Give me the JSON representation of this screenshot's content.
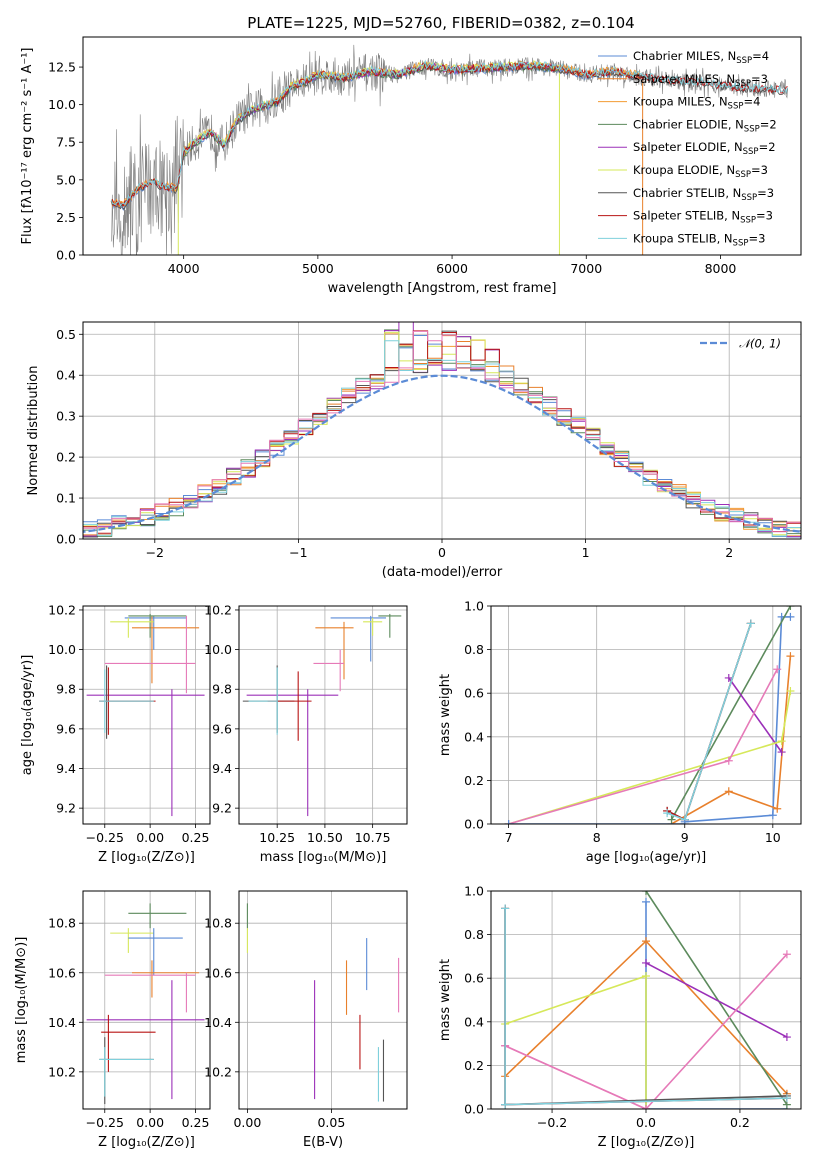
{
  "figure": {
    "title": "PLATE=1225, MJD=52760, FIBERID=0382, z=0.104"
  },
  "colors": {
    "Chabrier MILES": "#5b8bd6",
    "Salpeter MILES": "#e8802c",
    "Kroupa MILES": "#f29b33",
    "Chabrier ELODIE": "#5c8a5c",
    "Salpeter ELODIE": "#9b30b8",
    "Kroupa ELODIE": "#d6e85a",
    "Chabrier STELIB": "#555555",
    "Salpeter STELIB": "#b81414",
    "Kroupa STELIB": "#7fd0dc",
    "pink": "#e67ab8",
    "data": "#808080"
  },
  "legend": [
    {
      "name": "Chabrier MILES",
      "nssp": "4"
    },
    {
      "name": "Salpeter MILES",
      "nssp": "3"
    },
    {
      "name": "Kroupa MILES",
      "nssp": "4"
    },
    {
      "name": "Chabrier ELODIE",
      "nssp": "2"
    },
    {
      "name": "Salpeter ELODIE",
      "nssp": "2"
    },
    {
      "name": "Kroupa ELODIE",
      "nssp": "3"
    },
    {
      "name": "Chabrier STELIB",
      "nssp": "3"
    },
    {
      "name": "Salpeter STELIB",
      "nssp": "3"
    },
    {
      "name": "Kroupa STELIB",
      "nssp": "3"
    }
  ],
  "chart_data": [
    {
      "id": "spectrum",
      "type": "line",
      "xlabel": "wavelength [Angstrom, rest frame]",
      "ylabel": "Flux [fλ10⁻¹⁷ erg cm⁻² s⁻¹ A⁻¹]",
      "xlim": [
        3250,
        8600
      ],
      "ylim": [
        0,
        14.5
      ],
      "xticks": [
        4000,
        5000,
        6000,
        7000,
        8000
      ],
      "yticks": [
        0.0,
        2.5,
        5.0,
        7.5,
        10.0,
        12.5
      ],
      "continuum": {
        "x": [
          3450,
          3550,
          3650,
          3750,
          3850,
          3950,
          4000,
          4100,
          4200,
          4300,
          4400,
          4500,
          4600,
          4700,
          4800,
          4900,
          5000,
          5200,
          5400,
          5600,
          5800,
          6000,
          6200,
          6400,
          6600,
          6800,
          7000,
          7200,
          7400,
          7600,
          7800,
          8000,
          8200,
          8400,
          8500
        ],
        "y": [
          3.5,
          3.3,
          4.3,
          4.9,
          4.6,
          4.4,
          6.8,
          7.6,
          8.2,
          7.3,
          9.0,
          9.6,
          9.9,
          10.2,
          11.2,
          11.5,
          12.0,
          11.8,
          12.2,
          12.0,
          12.6,
          12.3,
          12.4,
          12.5,
          12.6,
          12.4,
          12.0,
          12.2,
          11.9,
          11.6,
          11.5,
          11.3,
          11.1,
          11.0,
          11.0
        ]
      }
    },
    {
      "id": "residuals",
      "type": "histogram",
      "xlabel": "(data-model)/error",
      "ylabel": "Normed distribution",
      "xlim": [
        -2.5,
        2.5
      ],
      "ylim": [
        0,
        0.53
      ],
      "xticks": [
        -2,
        -1,
        0,
        1,
        2
      ],
      "yticks": [
        0.0,
        0.1,
        0.2,
        0.3,
        0.4,
        0.5
      ],
      "bin_width": 0.1,
      "legend_label": "𝒩(0, 1)",
      "gaussian": {
        "mean": 0,
        "sigma": 1
      }
    },
    {
      "id": "age-vs-Z",
      "type": "errorbar",
      "xlabel": "Z [log₁₀(Z/Z⊙)]",
      "ylabel": "age  [log₁₀(age/yr)]",
      "xlim": [
        -0.37,
        0.33
      ],
      "ylim": [
        9.12,
        10.22
      ],
      "xticks": [
        -0.25,
        0.0,
        0.25
      ],
      "xticklabels": [
        "−0.25",
        "0.00",
        "0.25"
      ],
      "yticks": [
        9.2,
        9.4,
        9.6,
        9.8,
        10.0,
        10.2
      ],
      "points": [
        {
          "c": "Chabrier MILES",
          "x": 0.02,
          "xe": [
            -0.14,
            0.2
          ],
          "y": 10.16,
          "ye": [
            10.0,
            10.17
          ]
        },
        {
          "c": "Salpeter MILES",
          "x": 0.01,
          "xe": [
            -0.1,
            0.27
          ],
          "y": 10.11,
          "ye": [
            9.83,
            10.17
          ]
        },
        {
          "c": "Chabrier ELODIE",
          "x": 0.0,
          "xe": [
            -0.12,
            0.2
          ],
          "y": 10.17,
          "ye": [
            10.06,
            10.18
          ]
        },
        {
          "c": "Kroupa ELODIE",
          "x": -0.12,
          "xe": [
            -0.22,
            0.02
          ],
          "y": 10.14,
          "ye": [
            10.06,
            10.16
          ]
        },
        {
          "c": "pink",
          "x": 0.2,
          "xe": [
            -0.25,
            0.25
          ],
          "y": 9.93,
          "ye": [
            9.78,
            10.17
          ]
        },
        {
          "c": "Salpeter ELODIE",
          "x": 0.12,
          "xe": [
            -0.35,
            0.3
          ],
          "y": 9.77,
          "ye": [
            9.16,
            9.8
          ]
        },
        {
          "c": "Chabrier STELIB",
          "x": -0.24,
          "xe": [
            -0.28,
            0.02
          ],
          "y": 9.74,
          "ye": [
            9.55,
            9.92
          ]
        },
        {
          "c": "Salpeter STELIB",
          "x": -0.23,
          "xe": [
            -0.28,
            0.03
          ],
          "y": 9.74,
          "ye": [
            9.57,
            9.91
          ]
        },
        {
          "c": "Kroupa STELIB",
          "x": -0.25,
          "xe": [
            -0.28,
            0.02
          ],
          "y": 9.74,
          "ye": [
            9.58,
            9.9
          ]
        }
      ]
    },
    {
      "id": "age-vs-mass",
      "type": "errorbar",
      "xlabel": "mass [log₁₀(M/M⊙)]",
      "ylabel": "",
      "xlim": [
        10.05,
        10.93
      ],
      "ylim": [
        9.12,
        10.22
      ],
      "xticks": [
        10.25,
        10.5,
        10.75
      ],
      "xticklabels": [
        "10.25",
        "10.50",
        "10.75"
      ],
      "yticks": [
        9.2,
        9.4,
        9.6,
        9.8,
        10.0,
        10.2
      ],
      "points": [
        {
          "c": "Chabrier MILES",
          "x": 10.74,
          "xe": [
            10.53,
            10.82
          ],
          "y": 10.16,
          "ye": [
            9.94,
            10.17
          ]
        },
        {
          "c": "Salpeter MILES",
          "x": 10.6,
          "xe": [
            10.45,
            10.65
          ],
          "y": 10.11,
          "ye": [
            9.85,
            10.14
          ]
        },
        {
          "c": "Chabrier ELODIE",
          "x": 10.84,
          "xe": [
            10.78,
            10.9
          ],
          "y": 10.17,
          "ye": [
            10.06,
            10.18
          ]
        },
        {
          "c": "Kroupa ELODIE",
          "x": 10.75,
          "xe": [
            10.7,
            10.8
          ],
          "y": 10.14,
          "ye": [
            10.07,
            10.16
          ]
        },
        {
          "c": "pink",
          "x": 10.58,
          "xe": [
            10.44,
            10.6
          ],
          "y": 9.93,
          "ye": [
            9.79,
            10.0
          ]
        },
        {
          "c": "Salpeter ELODIE",
          "x": 10.41,
          "xe": [
            10.09,
            10.57
          ],
          "y": 9.77,
          "ye": [
            9.16,
            9.8
          ]
        },
        {
          "c": "Chabrier STELIB",
          "x": 10.25,
          "xe": [
            10.07,
            10.34
          ],
          "y": 9.74,
          "ye": [
            9.58,
            9.92
          ]
        },
        {
          "c": "Salpeter STELIB",
          "x": 10.36,
          "xe": [
            10.2,
            10.43
          ],
          "y": 9.74,
          "ye": [
            9.54,
            9.89
          ]
        },
        {
          "c": "Kroupa STELIB",
          "x": 10.25,
          "xe": [
            10.1,
            10.25
          ],
          "y": 9.74,
          "ye": [
            9.57,
            9.91
          ]
        }
      ]
    },
    {
      "id": "weight-vs-age",
      "type": "line",
      "xlabel": "age  [log₁₀(age/yr)]",
      "ylabel": "mass weight",
      "xlim": [
        6.8,
        10.32
      ],
      "ylim": [
        0,
        1.0
      ],
      "xticks": [
        7,
        8,
        9,
        10
      ],
      "yticks": [
        0.0,
        0.2,
        0.4,
        0.6,
        0.8,
        1.0
      ],
      "series": [
        {
          "c": "Chabrier MILES",
          "x": [
            9.0,
            10.0,
            10.1,
            10.2
          ],
          "y": [
            0.01,
            0.04,
            0.95,
            0.95
          ]
        },
        {
          "c": "Salpeter MILES",
          "x": [
            8.85,
            9.5,
            10.05,
            10.2
          ],
          "y": [
            0.0,
            0.15,
            0.07,
            0.77
          ]
        },
        {
          "c": "Chabrier ELODIE",
          "x": [
            8.85,
            10.2
          ],
          "y": [
            0.02,
            1.0
          ]
        },
        {
          "c": "Salpeter ELODIE",
          "x": [
            9.5,
            10.1
          ],
          "y": [
            0.67,
            0.33
          ]
        },
        {
          "c": "Kroupa ELODIE",
          "x": [
            7.0,
            10.1,
            10.2
          ],
          "y": [
            0.0,
            0.38,
            0.61
          ]
        },
        {
          "c": "pink",
          "x": [
            7.0,
            9.5,
            10.05
          ],
          "y": [
            0.0,
            0.29,
            0.71
          ]
        },
        {
          "c": "Chabrier STELIB",
          "x": [
            8.8,
            9.0,
            9.75
          ],
          "y": [
            0.06,
            0.02,
            0.92
          ]
        },
        {
          "c": "Salpeter STELIB",
          "x": [
            8.8,
            9.0,
            9.75
          ],
          "y": [
            0.06,
            0.02,
            0.92
          ]
        },
        {
          "c": "Kroupa STELIB",
          "x": [
            8.8,
            9.0,
            9.75
          ],
          "y": [
            0.05,
            0.02,
            0.92
          ]
        },
        {
          "c": "Chabrier MILES",
          "x": [
            7.0,
            9.0
          ],
          "y": [
            0.0,
            0.0
          ]
        }
      ]
    },
    {
      "id": "mass-vs-Z",
      "type": "errorbar",
      "xlabel": "Z [log₁₀(Z/Z⊙)]",
      "ylabel": "mass [log₁₀(M/M⊙)]",
      "xlim": [
        -0.37,
        0.33
      ],
      "ylim": [
        10.05,
        10.93
      ],
      "xticks": [
        -0.25,
        0.0,
        0.25
      ],
      "xticklabels": [
        "−0.25",
        "0.00",
        "0.25"
      ],
      "yticks": [
        10.2,
        10.4,
        10.6,
        10.8
      ],
      "points": [
        {
          "c": "Chabrier ELODIE",
          "x": 0.0,
          "xe": [
            -0.12,
            0.2
          ],
          "y": 10.84,
          "ye": [
            10.78,
            10.88
          ]
        },
        {
          "c": "Kroupa ELODIE",
          "x": -0.12,
          "xe": [
            -0.22,
            0.02
          ],
          "y": 10.76,
          "ye": [
            10.68,
            10.78
          ]
        },
        {
          "c": "Chabrier MILES",
          "x": 0.02,
          "xe": [
            -0.12,
            0.18
          ],
          "y": 10.74,
          "ye": [
            10.59,
            10.78
          ]
        },
        {
          "c": "Salpeter MILES",
          "x": 0.01,
          "xe": [
            -0.1,
            0.27
          ],
          "y": 10.6,
          "ye": [
            10.5,
            10.65
          ]
        },
        {
          "c": "pink",
          "x": 0.2,
          "xe": [
            -0.25,
            0.25
          ],
          "y": 10.59,
          "ye": [
            10.44,
            10.6
          ]
        },
        {
          "c": "Salpeter ELODIE",
          "x": 0.12,
          "xe": [
            -0.35,
            0.3
          ],
          "y": 10.41,
          "ye": [
            10.09,
            10.57
          ]
        },
        {
          "c": "Salpeter STELIB",
          "x": -0.23,
          "xe": [
            -0.27,
            0.03
          ],
          "y": 10.36,
          "ye": [
            10.2,
            10.43
          ]
        },
        {
          "c": "Chabrier STELIB",
          "x": -0.25,
          "xe": [
            -0.28,
            0.02
          ],
          "y": 10.25,
          "ye": [
            10.07,
            10.34
          ]
        },
        {
          "c": "Kroupa STELIB",
          "x": -0.25,
          "xe": [
            -0.28,
            0.02
          ],
          "y": 10.25,
          "ye": [
            10.1,
            10.3
          ]
        }
      ]
    },
    {
      "id": "mass-vs-EBV",
      "type": "errorbar",
      "xlabel": "E(B-V)",
      "ylabel": "",
      "xlim": [
        -0.005,
        0.095
      ],
      "ylim": [
        10.05,
        10.93
      ],
      "xticks": [
        0.0,
        0.05
      ],
      "xticklabels": [
        "0.00",
        "0.05"
      ],
      "yticks": [
        10.2,
        10.4,
        10.6,
        10.8
      ],
      "points": [
        {
          "c": "Chabrier ELODIE",
          "x": 0.0,
          "y": 10.84,
          "ye": [
            10.78,
            10.88
          ]
        },
        {
          "c": "Kroupa ELODIE",
          "x": 0.0,
          "y": 10.76,
          "ye": [
            10.68,
            10.78
          ]
        },
        {
          "c": "Chabrier MILES",
          "x": 0.071,
          "y": 10.6,
          "ye": [
            10.53,
            10.74
          ]
        },
        {
          "c": "Salpeter MILES",
          "x": 0.059,
          "y": 10.55,
          "ye": [
            10.43,
            10.65
          ]
        },
        {
          "c": "pink",
          "x": 0.09,
          "y": 10.6,
          "ye": [
            10.44,
            10.66
          ]
        },
        {
          "c": "Salpeter ELODIE",
          "x": 0.04,
          "y": 10.41,
          "ye": [
            10.09,
            10.57
          ]
        },
        {
          "c": "Salpeter STELIB",
          "x": 0.067,
          "y": 10.36,
          "ye": [
            10.21,
            10.43
          ]
        },
        {
          "c": "Chabrier STELIB",
          "x": 0.081,
          "y": 10.25,
          "ye": [
            10.08,
            10.33
          ]
        },
        {
          "c": "Kroupa STELIB",
          "x": 0.078,
          "y": 10.25,
          "ye": [
            10.08,
            10.3
          ]
        }
      ]
    },
    {
      "id": "weight-vs-Z",
      "type": "line",
      "xlabel": "Z [log₁₀(Z/Z⊙)]",
      "ylabel": "mass weight",
      "xlim": [
        -0.33,
        0.33
      ],
      "ylim": [
        0,
        1.0
      ],
      "xticks": [
        -0.2,
        0.0,
        0.2
      ],
      "xticklabels": [
        "−0.2",
        "0.0",
        "0.2"
      ],
      "yticks": [
        0.0,
        0.2,
        0.4,
        0.6,
        0.8,
        1.0
      ],
      "series": [
        {
          "c": "Chabrier MILES",
          "x": [
            0.0,
            0.0,
            0.3
          ],
          "y": [
            0.95,
            0.0,
            0.0
          ]
        },
        {
          "c": "Salpeter MILES",
          "x": [
            -0.3,
            0.0,
            0.3
          ],
          "y": [
            0.15,
            0.77,
            0.07
          ]
        },
        {
          "c": "Chabrier ELODIE",
          "x": [
            0.0,
            0.3
          ],
          "y": [
            1.0,
            0.02
          ]
        },
        {
          "c": "Salpeter ELODIE",
          "x": [
            0.0,
            0.3
          ],
          "y": [
            0.67,
            0.33
          ]
        },
        {
          "c": "Kroupa ELODIE",
          "x": [
            -0.3,
            0.0,
            0.0
          ],
          "y": [
            0.39,
            0.61,
            0.0
          ]
        },
        {
          "c": "pink",
          "x": [
            -0.3,
            0.0,
            0.3
          ],
          "y": [
            0.29,
            0.0,
            0.71
          ]
        },
        {
          "c": "pink",
          "x": [
            -0.3,
            0.0
          ],
          "y": [
            0.29,
            0.0
          ]
        },
        {
          "c": "Chabrier STELIB",
          "x": [
            -0.3,
            -0.3,
            0.3
          ],
          "y": [
            0.92,
            0.02,
            0.06
          ]
        },
        {
          "c": "Salpeter STELIB",
          "x": [
            -0.3,
            -0.3,
            0.3
          ],
          "y": [
            0.92,
            0.02,
            0.05
          ]
        },
        {
          "c": "Kroupa STELIB",
          "x": [
            -0.3,
            -0.3,
            0.3
          ],
          "y": [
            0.92,
            0.02,
            0.05
          ]
        }
      ]
    }
  ]
}
